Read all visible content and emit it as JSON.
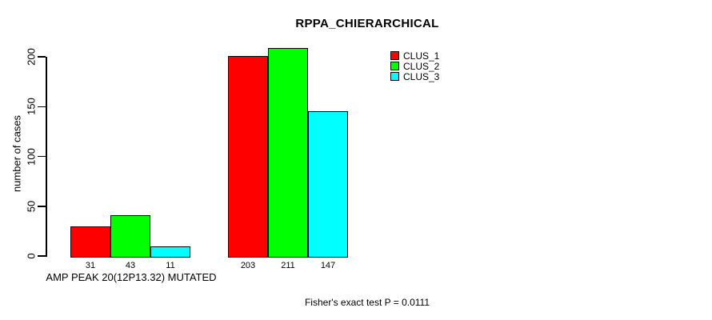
{
  "chart": {
    "title": "RPPA_CHIERARCHICAL",
    "ylabel": "number of cases",
    "category_label": "AMP PEAK 20(12P13.32) MUTATED",
    "annotation": "Fisher's exact test P = 0.0111"
  },
  "chart_data": {
    "type": "bar",
    "title": "RPPA_CHIERARCHICAL",
    "xlabel": "",
    "ylabel": "number of cases",
    "categories": [
      "AMP PEAK 20(12P13.32) MUTATED",
      ""
    ],
    "series": [
      {
        "name": "CLUS_1",
        "color": "#ff0000",
        "values": [
          31,
          203
        ]
      },
      {
        "name": "CLUS_2",
        "color": "#00ff00",
        "values": [
          43,
          211
        ]
      },
      {
        "name": "CLUS_3",
        "color": "#00ffff",
        "values": [
          11,
          147
        ]
      }
    ],
    "bar_value_labels": [
      [
        31,
        43,
        11
      ],
      [
        203,
        211,
        147
      ]
    ],
    "yticks": [
      0,
      50,
      100,
      150,
      200
    ],
    "ylim": [
      0,
      211
    ],
    "grid": false,
    "legend_position": "top-right",
    "annotation": "Fisher's exact test P = 0.0111",
    "axis_color": "#000000",
    "background_color": "#ffffff"
  }
}
